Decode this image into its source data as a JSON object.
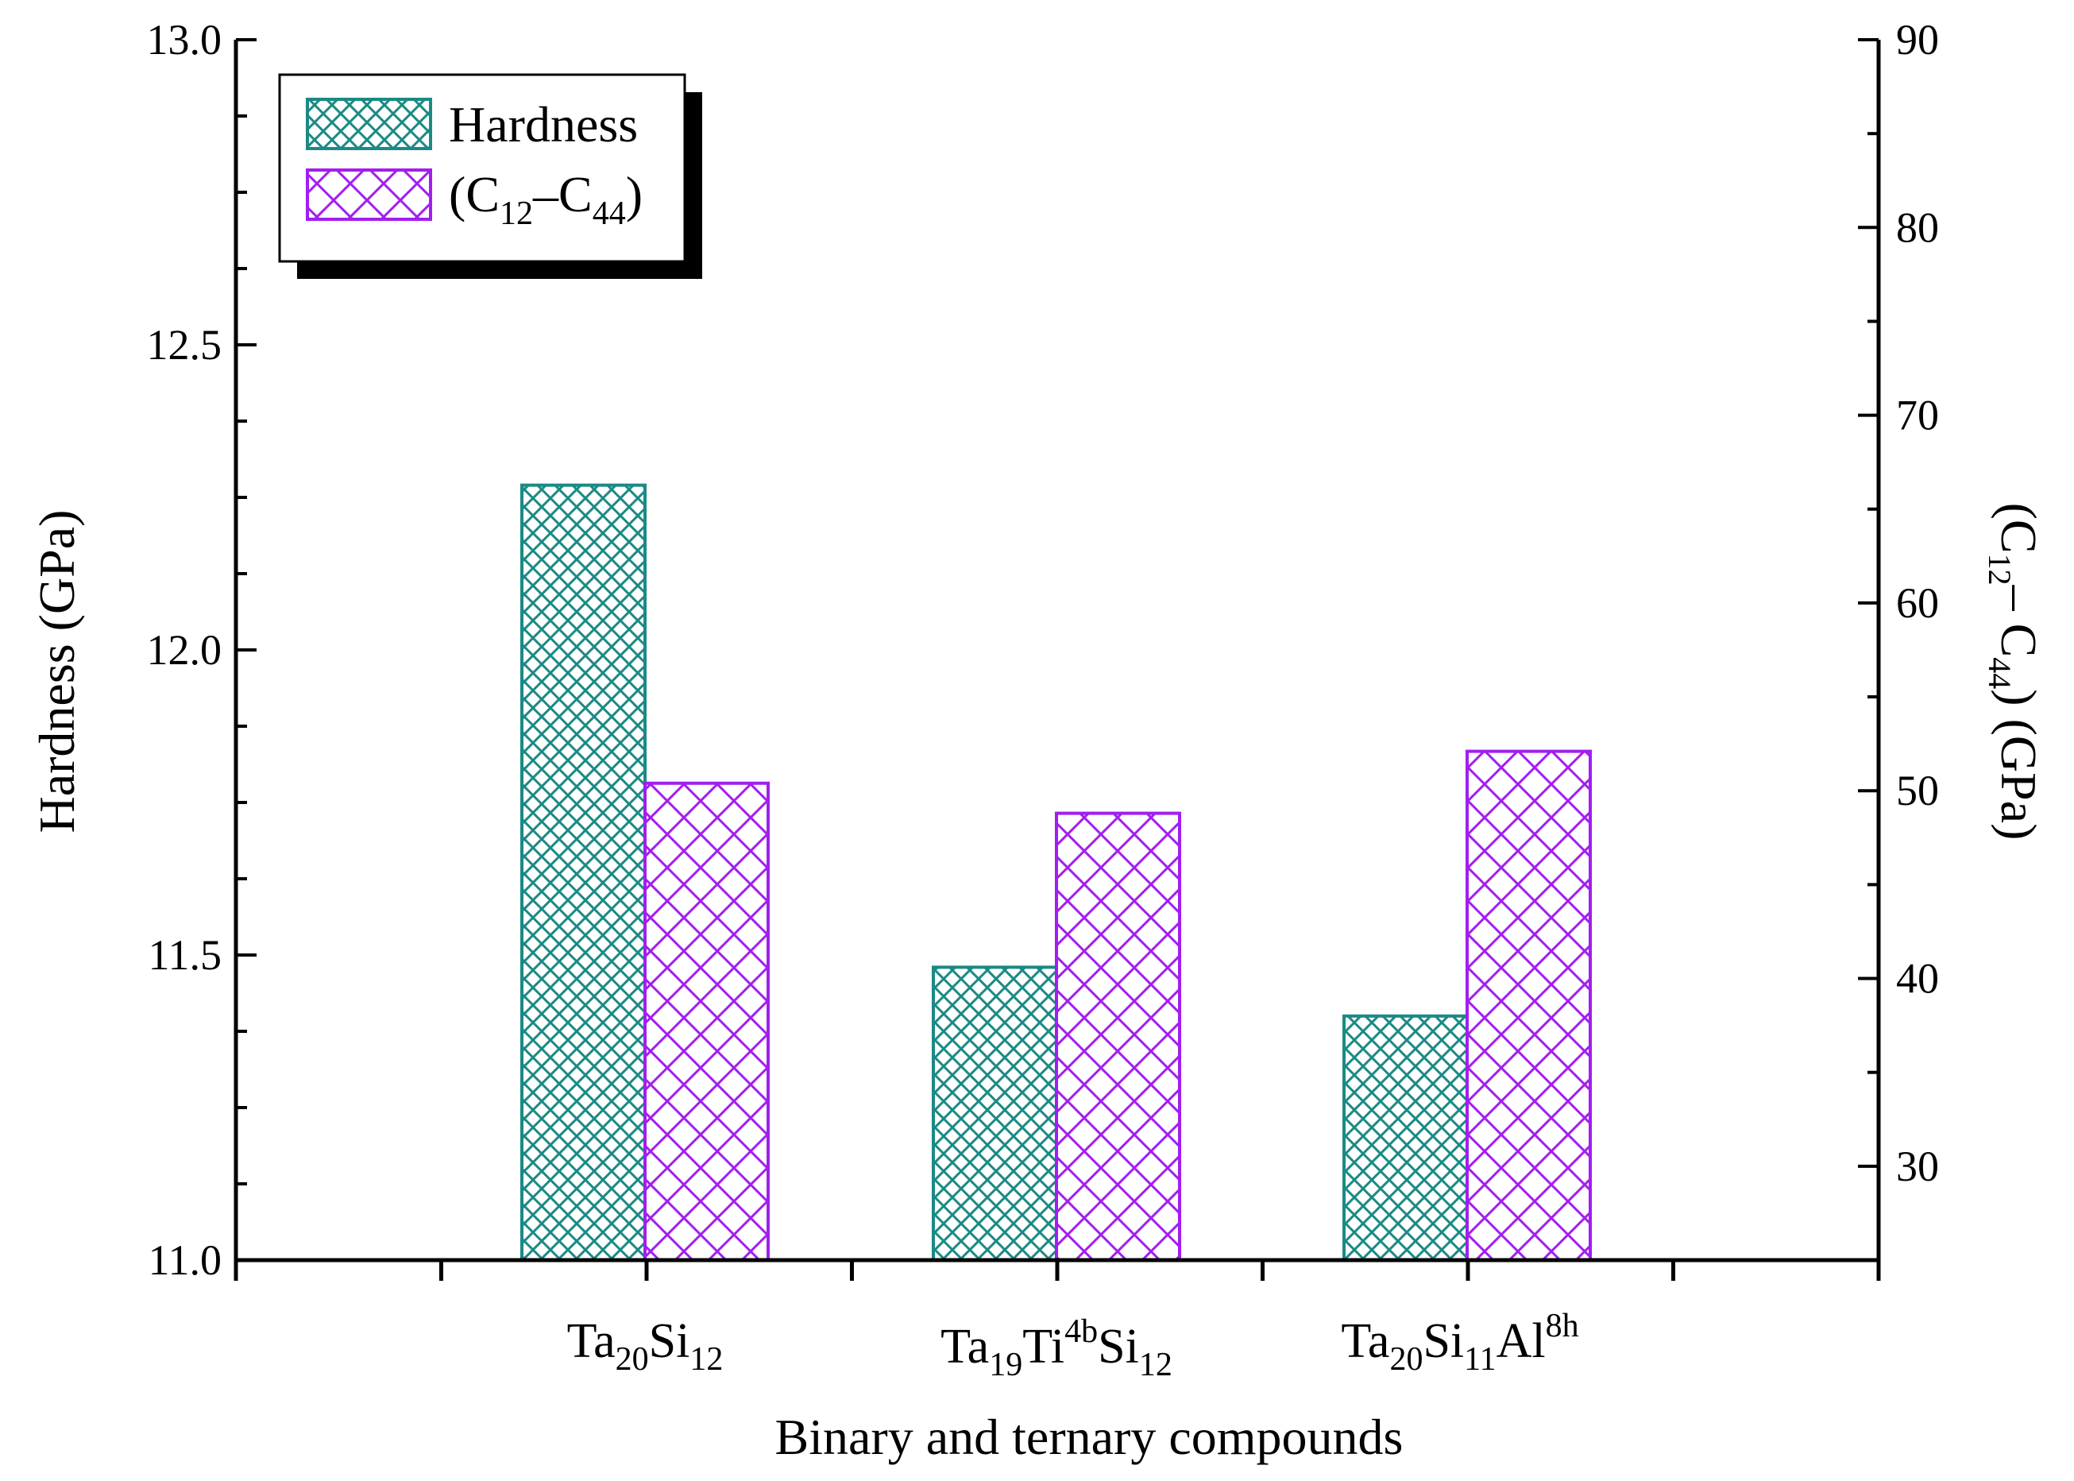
{
  "chart_data": {
    "type": "bar",
    "xlabel": "Binary and ternary compounds",
    "categories": [
      {
        "base": "Ta",
        "sub1": "20",
        "mid": "Si",
        "sub2": "12",
        "extra": "",
        "sup": ""
      },
      {
        "base": "Ta",
        "sub1": "19",
        "mid": "Ti",
        "sup": "4b",
        "tail": "Si",
        "sub2": "12"
      },
      {
        "base": "Ta",
        "sub1": "20",
        "mid": "Si",
        "sub2": "11",
        "extra": "Al",
        "sup": "8h"
      }
    ],
    "left_axis": {
      "label": "Hardness (GPa)",
      "ylim": [
        11.0,
        13.0
      ],
      "ticks": [
        "11.0",
        "11.5",
        "12.0",
        "12.5",
        "13.0"
      ]
    },
    "right_axis": {
      "label_open": "(C",
      "label_sub1": "12",
      "label_mid": "– C",
      "label_sub2": "44",
      "label_close": ") (GPa)",
      "ylim": [
        25,
        90
      ],
      "ticks": [
        "30",
        "40",
        "50",
        "60",
        "70",
        "80",
        "90"
      ]
    },
    "series": [
      {
        "name": "Hardness",
        "axis": "left",
        "color": "#1a8a84",
        "values": [
          12.27,
          11.48,
          11.4
        ]
      },
      {
        "name": "(C12–C44)",
        "axis": "right",
        "color": "#a21ef0",
        "values": [
          50.4,
          48.8,
          52.1
        ]
      }
    ],
    "legend": {
      "placement": "top-left",
      "hardness_label": "Hardness",
      "c_open": "(C",
      "c_sub1": "12",
      "c_mid": "–C",
      "c_sub2": "44",
      "c_close": ")"
    }
  }
}
